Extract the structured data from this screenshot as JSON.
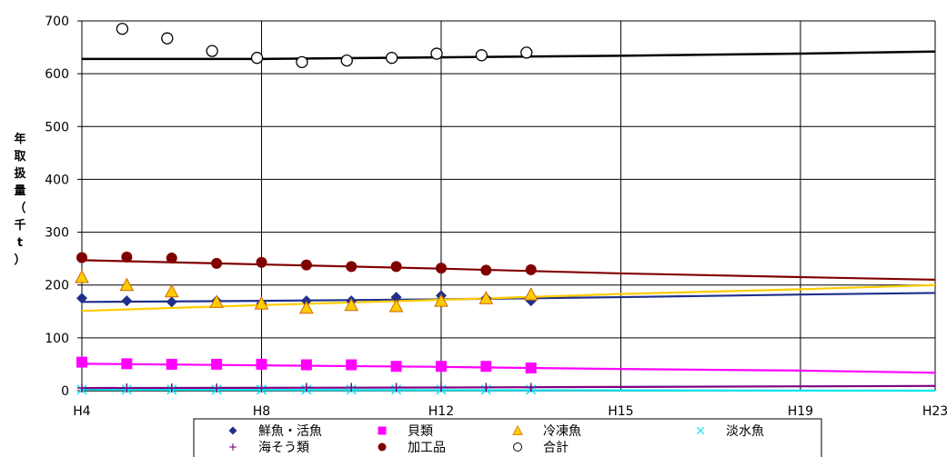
{
  "chart_data": {
    "type": "line",
    "title": "",
    "ylabel_chars": [
      "年",
      "取",
      "扱",
      "量",
      "（",
      "千",
      "t",
      "）"
    ],
    "ylim": [
      0,
      700
    ],
    "yticks": [
      0,
      100,
      200,
      300,
      400,
      500,
      600,
      700
    ],
    "xlim": [
      4,
      23
    ],
    "xticks": [
      {
        "x": 4,
        "label": "H4"
      },
      {
        "x": 8,
        "label": "H8"
      },
      {
        "x": 12,
        "label": "H12"
      },
      {
        "x": 16,
        "label": "H15"
      },
      {
        "x": 20,
        "label": "H19"
      },
      {
        "x": 23,
        "label": "H23"
      }
    ],
    "grid": true,
    "series": [
      {
        "name": "鮮魚・活魚",
        "color": "#1f2f8a",
        "marker": "diamond",
        "points": [
          [
            4,
            175
          ],
          [
            5,
            170
          ],
          [
            6,
            168
          ],
          [
            7,
            170
          ],
          [
            8,
            165
          ],
          [
            9,
            170
          ],
          [
            10,
            170
          ],
          [
            11,
            177
          ],
          [
            12,
            180
          ],
          [
            13,
            175
          ],
          [
            14,
            170
          ]
        ],
        "trend": [
          [
            4,
            168
          ],
          [
            8,
            170
          ],
          [
            12,
            173
          ],
          [
            16,
            177
          ],
          [
            20,
            182
          ],
          [
            23,
            185
          ]
        ]
      },
      {
        "name": "貝類",
        "color": "#ff00ff",
        "marker": "square",
        "points": [
          [
            4,
            54
          ],
          [
            5,
            51
          ],
          [
            6,
            50
          ],
          [
            7,
            50
          ],
          [
            8,
            50
          ],
          [
            9,
            49
          ],
          [
            10,
            49
          ],
          [
            11,
            46
          ],
          [
            12,
            46
          ],
          [
            13,
            46
          ],
          [
            14,
            43
          ]
        ],
        "trend": [
          [
            4,
            51
          ],
          [
            8,
            48
          ],
          [
            12,
            45
          ],
          [
            16,
            41
          ],
          [
            20,
            38
          ],
          [
            23,
            34
          ]
        ]
      },
      {
        "name": "冷凍魚",
        "color": "#ffcc00",
        "marker": "triangle",
        "points": [
          [
            4,
            215
          ],
          [
            5,
            200
          ],
          [
            6,
            188
          ],
          [
            7,
            168
          ],
          [
            8,
            165
          ],
          [
            9,
            157
          ],
          [
            10,
            162
          ],
          [
            11,
            160
          ],
          [
            12,
            170
          ],
          [
            13,
            175
          ],
          [
            14,
            182
          ]
        ],
        "trend": [
          [
            4,
            151
          ],
          [
            8,
            162
          ],
          [
            12,
            172
          ],
          [
            16,
            183
          ],
          [
            20,
            192
          ],
          [
            23,
            200
          ]
        ]
      },
      {
        "name": "淡水魚",
        "color": "#00e5ee",
        "marker": "x",
        "points": [
          [
            4,
            2
          ],
          [
            5,
            2
          ],
          [
            6,
            2
          ],
          [
            7,
            2
          ],
          [
            8,
            2
          ],
          [
            9,
            2
          ],
          [
            10,
            2
          ],
          [
            11,
            2
          ],
          [
            12,
            2
          ],
          [
            13,
            2
          ],
          [
            14,
            2
          ]
        ],
        "trend": [
          [
            4,
            2
          ],
          [
            12,
            1
          ],
          [
            23,
            0
          ]
        ]
      },
      {
        "name": "海そう類",
        "color": "#800080",
        "marker": "plus",
        "points": [
          [
            4,
            5
          ],
          [
            5,
            5
          ],
          [
            6,
            5
          ],
          [
            7,
            5
          ],
          [
            8,
            5
          ],
          [
            9,
            6
          ],
          [
            10,
            6
          ],
          [
            11,
            6
          ],
          [
            12,
            6
          ],
          [
            13,
            6
          ],
          [
            14,
            6
          ]
        ],
        "trend": [
          [
            4,
            5
          ],
          [
            12,
            6
          ],
          [
            23,
            9
          ]
        ]
      },
      {
        "name": "加工品",
        "color": "#800000",
        "marker": "circle",
        "points": [
          [
            4,
            252
          ],
          [
            5,
            253
          ],
          [
            6,
            251
          ],
          [
            7,
            241
          ],
          [
            8,
            243
          ],
          [
            9,
            238
          ],
          [
            10,
            235
          ],
          [
            11,
            235
          ],
          [
            12,
            232
          ],
          [
            13,
            228
          ],
          [
            14,
            229
          ]
        ],
        "trend": [
          [
            4,
            247
          ],
          [
            8,
            239
          ],
          [
            12,
            231
          ],
          [
            16,
            222
          ],
          [
            20,
            215
          ],
          [
            23,
            210
          ]
        ]
      },
      {
        "name": "合計",
        "color": "#000000",
        "marker": "open-circle",
        "points": [
          [
            4.9,
            685
          ],
          [
            5.9,
            667
          ],
          [
            6.9,
            643
          ],
          [
            7.9,
            630
          ],
          [
            8.9,
            622
          ],
          [
            9.9,
            625
          ],
          [
            10.9,
            630
          ],
          [
            11.9,
            638
          ],
          [
            12.9,
            635
          ],
          [
            13.9,
            640
          ]
        ],
        "trend": [
          [
            4,
            628
          ],
          [
            8,
            628
          ],
          [
            12,
            631
          ],
          [
            16,
            634
          ],
          [
            20,
            638
          ],
          [
            23,
            642
          ]
        ]
      }
    ],
    "legend": {
      "position": "bottom",
      "rows": [
        [
          "鮮魚・活魚",
          "貝類",
          "冷凍魚",
          "淡水魚"
        ],
        [
          "海そう類",
          "加工品",
          "合計"
        ]
      ]
    }
  }
}
